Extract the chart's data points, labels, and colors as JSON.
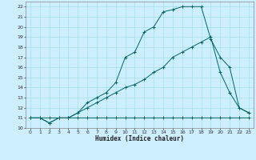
{
  "xlabel": "Humidex (Indice chaleur)",
  "bg_color": "#cceeff",
  "line_color": "#006666",
  "grid_color": "#99dddd",
  "xlim": [
    -0.5,
    23.5
  ],
  "ylim": [
    10,
    22.5
  ],
  "yticks": [
    10,
    11,
    12,
    13,
    14,
    15,
    16,
    17,
    18,
    19,
    20,
    21,
    22
  ],
  "xticks": [
    0,
    1,
    2,
    3,
    4,
    5,
    6,
    7,
    8,
    9,
    10,
    11,
    12,
    13,
    14,
    15,
    16,
    17,
    18,
    19,
    20,
    21,
    22,
    23
  ],
  "line1_x": [
    0,
    1,
    2,
    3,
    4,
    5,
    6,
    7,
    8,
    9,
    10,
    11,
    12,
    13,
    14,
    15,
    16,
    17,
    18,
    19,
    20,
    21,
    22,
    23
  ],
  "line1_y": [
    11,
    11,
    10.5,
    11,
    11,
    11,
    11,
    11,
    11,
    11,
    11,
    11,
    11,
    11,
    11,
    11,
    11,
    11,
    11,
    11,
    11,
    11,
    11,
    11
  ],
  "line2_x": [
    0,
    1,
    2,
    3,
    4,
    5,
    6,
    7,
    8,
    9,
    10,
    11,
    12,
    13,
    14,
    15,
    16,
    17,
    18,
    19,
    20,
    21,
    22,
    23
  ],
  "line2_y": [
    11,
    11,
    11,
    11,
    11,
    11.5,
    12,
    12.5,
    13,
    13.5,
    14,
    14.3,
    14.8,
    15.5,
    16,
    17,
    17.5,
    18,
    18.5,
    19,
    15.5,
    13.5,
    12,
    11.5
  ],
  "line3_x": [
    0,
    1,
    2,
    3,
    4,
    5,
    6,
    7,
    8,
    9,
    10,
    11,
    12,
    13,
    14,
    15,
    16,
    17,
    18,
    19,
    20,
    21,
    22,
    23
  ],
  "line3_y": [
    11,
    11,
    10.5,
    11,
    11,
    11.5,
    12.5,
    13,
    13.5,
    14.5,
    17,
    17.5,
    19.5,
    20,
    21.5,
    21.7,
    22,
    22,
    22,
    18.8,
    17,
    16,
    12,
    11.5
  ]
}
